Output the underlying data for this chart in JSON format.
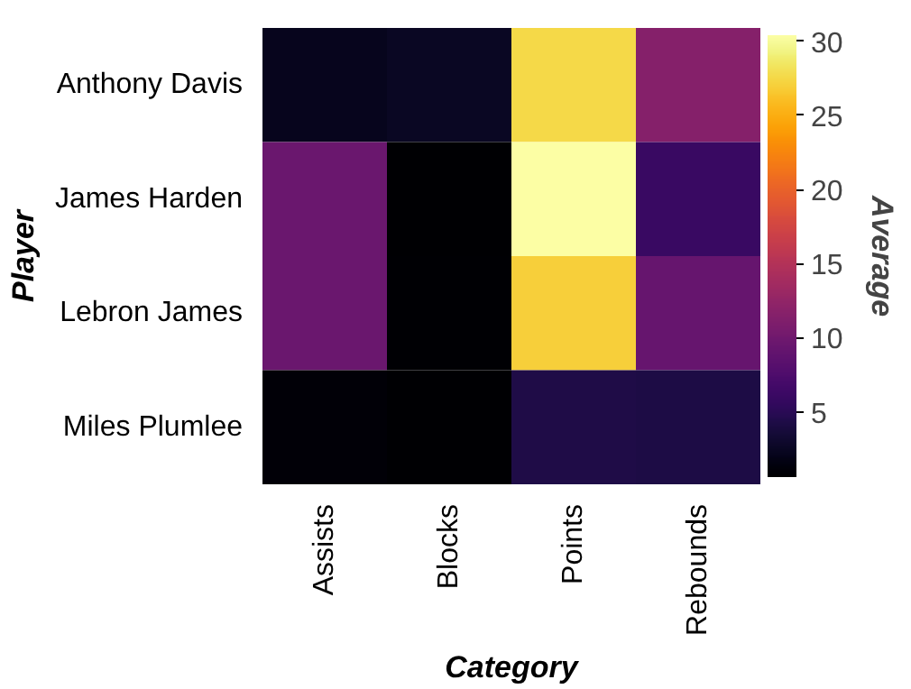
{
  "chart_data": {
    "type": "heatmap",
    "xlabel": "Category",
    "ylabel": "Player",
    "clabel": "Average",
    "categories": [
      "Assists",
      "Blocks",
      "Points",
      "Rebounds"
    ],
    "y_categories": [
      "Anthony Davis",
      "James Harden",
      "Lebron James",
      "Miles Plumlee"
    ],
    "cells": [
      [
        2.2,
        2.5,
        27.5,
        11.5
      ],
      [
        9.5,
        0.7,
        30.4,
        6.0
      ],
      [
        9.5,
        0.8,
        27.0,
        9.3
      ],
      [
        1.0,
        0.6,
        4.3,
        4.1
      ]
    ],
    "clim": [
      0.6,
      30.4
    ],
    "cticks": [
      5,
      10,
      15,
      20,
      25,
      30
    ],
    "grid": false
  }
}
